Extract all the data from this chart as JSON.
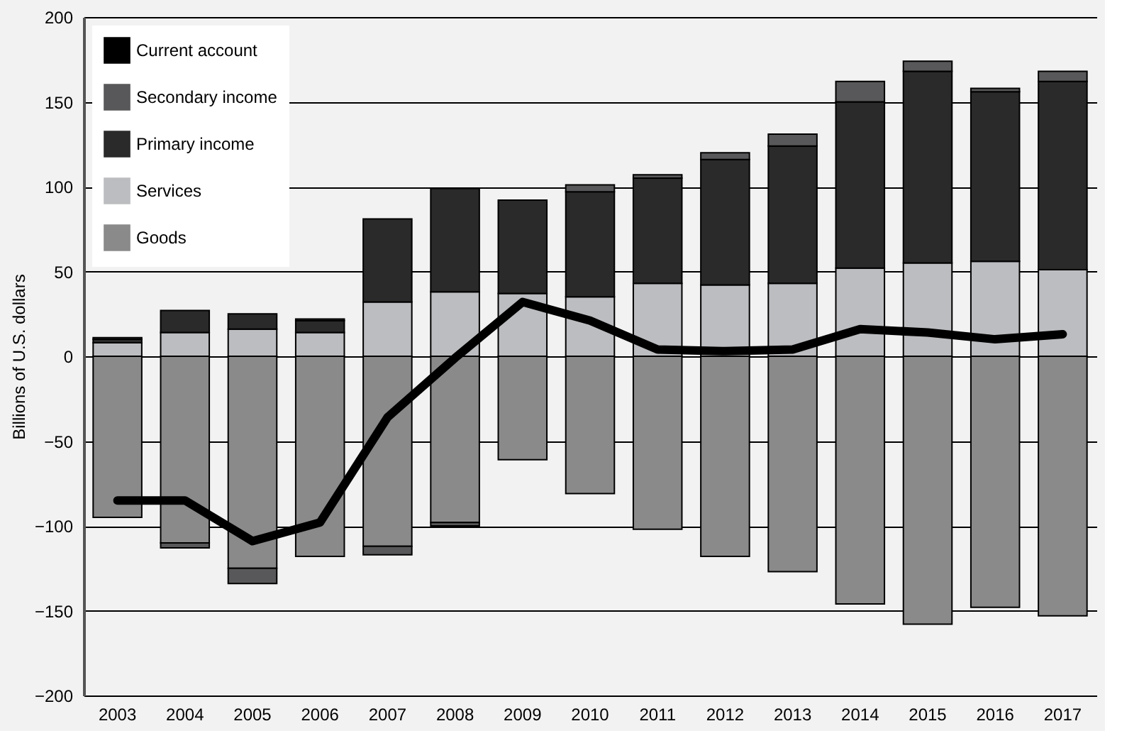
{
  "chart_data": {
    "type": "bar",
    "stacked": true,
    "ylabel": "Billions of U.S. dollars",
    "categories": [
      "2003",
      "2004",
      "2005",
      "2006",
      "2007",
      "2008",
      "2009",
      "2010",
      "2011",
      "2012",
      "2013",
      "2014",
      "2015",
      "2016",
      "2017"
    ],
    "series": [
      {
        "name": "Goods",
        "color": "#8a8a8a",
        "values": [
          -95,
          -110,
          -125,
          -118,
          -112,
          -98,
          -61,
          -81,
          -102,
          -118,
          -127,
          -146,
          -158,
          -148,
          -153
        ]
      },
      {
        "name": "Services",
        "color": "#bcbdc0",
        "values": [
          8,
          14,
          16,
          14,
          32,
          38,
          37,
          35,
          43,
          42,
          43,
          52,
          55,
          56,
          51
        ]
      },
      {
        "name": "Primary income",
        "color": "#2a2a2a",
        "values": [
          2,
          13,
          9,
          7,
          49,
          61,
          55,
          62,
          62,
          74,
          81,
          98,
          113,
          100,
          111
        ]
      },
      {
        "name": "Secondary income",
        "color": "#58585a",
        "values": [
          1,
          -3,
          -9,
          1,
          -5,
          -2,
          null,
          4,
          2,
          4,
          7,
          12,
          6,
          2,
          6
        ]
      },
      {
        "name": "Current account",
        "type": "line",
        "color": "#000000",
        "values": [
          -85,
          -85,
          -109,
          -98,
          -36,
          -1,
          32,
          21,
          4,
          3,
          4,
          16,
          14,
          10,
          13
        ]
      }
    ],
    "ylim": [
      -200,
      200
    ],
    "yticks": [
      -200,
      -150,
      -100,
      -50,
      0,
      50,
      100,
      150,
      200
    ],
    "grid": "y",
    "legend": "top left"
  }
}
